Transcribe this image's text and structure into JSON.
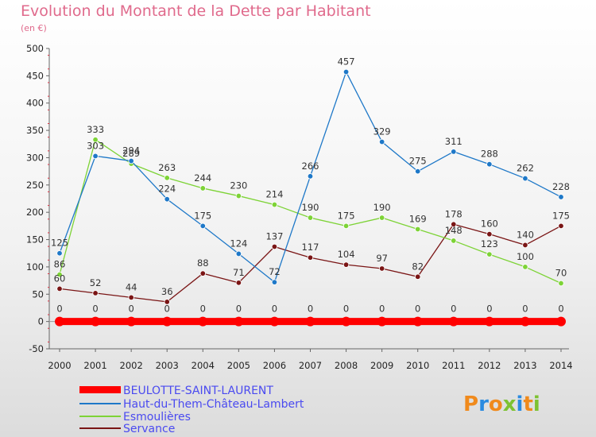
{
  "chart_data": {
    "type": "line",
    "title": "Evolution du Montant de la Dette par Habitant",
    "unit": "(en €)",
    "x": [
      2000,
      2001,
      2002,
      2003,
      2004,
      2005,
      2006,
      2007,
      2008,
      2009,
      2010,
      2011,
      2012,
      2013,
      2014
    ],
    "ylim": [
      -50,
      500
    ],
    "yticks": [
      -50,
      0,
      50,
      100,
      150,
      200,
      250,
      300,
      350,
      400,
      450,
      500
    ],
    "grid": false,
    "legend_position": "bottom-left",
    "series": [
      {
        "name": "BEULOTTE-SAINT-LAURENT",
        "color": "#ff0000",
        "values": [
          0,
          0,
          0,
          0,
          0,
          0,
          0,
          0,
          0,
          0,
          0,
          0,
          0,
          0,
          0
        ]
      },
      {
        "name": "Haut-du-Them-Château-Lambert",
        "color": "#1e78c8",
        "values": [
          125,
          303,
          294,
          224,
          175,
          124,
          72,
          266,
          457,
          329,
          275,
          311,
          288,
          262,
          228
        ]
      },
      {
        "name": "Esmoulières",
        "color": "#7dd336",
        "values": [
          86,
          333,
          289,
          263,
          244,
          230,
          214,
          190,
          175,
          190,
          169,
          148,
          123,
          100,
          70
        ]
      },
      {
        "name": "Servance",
        "color": "#7a1515",
        "values": [
          60,
          52,
          44,
          36,
          88,
          71,
          137,
          117,
          104,
          97,
          82,
          178,
          160,
          140,
          175
        ]
      }
    ]
  },
  "logo": {
    "text": "Proxiti"
  }
}
